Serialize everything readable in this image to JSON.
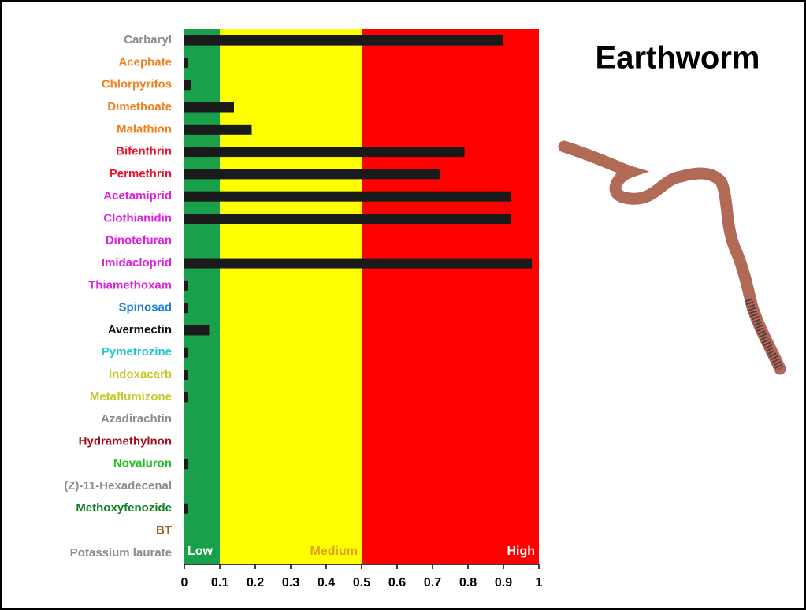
{
  "chart_data": {
    "type": "hbar",
    "title": "Earthworm",
    "categories": [
      "Carbaryl",
      "Acephate",
      "Chlorpyrifos",
      "Dimethoate",
      "Malathion",
      "Bifenthrin",
      "Permethrin",
      "Acetamiprid",
      "Clothianidin",
      "Dinotefuran",
      "Imidacloprid",
      "Thiamethoxam",
      "Spinosad",
      "Avermectin",
      "Pymetrozine",
      "Indoxacarb",
      "Metaflumizone",
      "Azadirachtin",
      "Hydramethylnon",
      "Novaluron",
      "(Z)-11-Hexadecenal",
      "Methoxyfenozide",
      "BT",
      "Potassium laurate"
    ],
    "category_colors": [
      "#8c8c8c",
      "#f08020",
      "#f08020",
      "#f08020",
      "#f08020",
      "#e8102a",
      "#e8102a",
      "#e020e0",
      "#e020e0",
      "#e020e0",
      "#e020e0",
      "#e020e0",
      "#2080e0",
      "#111111",
      "#20c8d0",
      "#c8c830",
      "#c8c830",
      "#8c8c8c",
      "#a01020",
      "#20c020",
      "#8c8c8c",
      "#108020",
      "#a06020",
      "#8c8c8c"
    ],
    "values": [
      0.9,
      0.01,
      0.02,
      0.14,
      0.19,
      0.79,
      0.72,
      0.92,
      0.92,
      0,
      0.98,
      0.01,
      0.01,
      0.07,
      0.01,
      0.01,
      0.01,
      0,
      0,
      0.01,
      0,
      0.01,
      0,
      0
    ],
    "color": "#1a1a1a",
    "xlim": [
      0,
      1
    ],
    "xticks": [
      0,
      0.1,
      0.2,
      0.3,
      0.4,
      0.5,
      0.6,
      0.7,
      0.8,
      0.9,
      1
    ],
    "zones": [
      {
        "name": "Low",
        "from": 0,
        "to": 0.1,
        "color": "#1a9f4a",
        "label_color": "#ffffff"
      },
      {
        "name": "Medium",
        "from": 0.1,
        "to": 0.5,
        "color": "#ffff00",
        "label_color": "#e0a020"
      },
      {
        "name": "High",
        "from": 0.5,
        "to": 1,
        "color": "#ff0000",
        "label_color": "#ffffff"
      }
    ]
  }
}
